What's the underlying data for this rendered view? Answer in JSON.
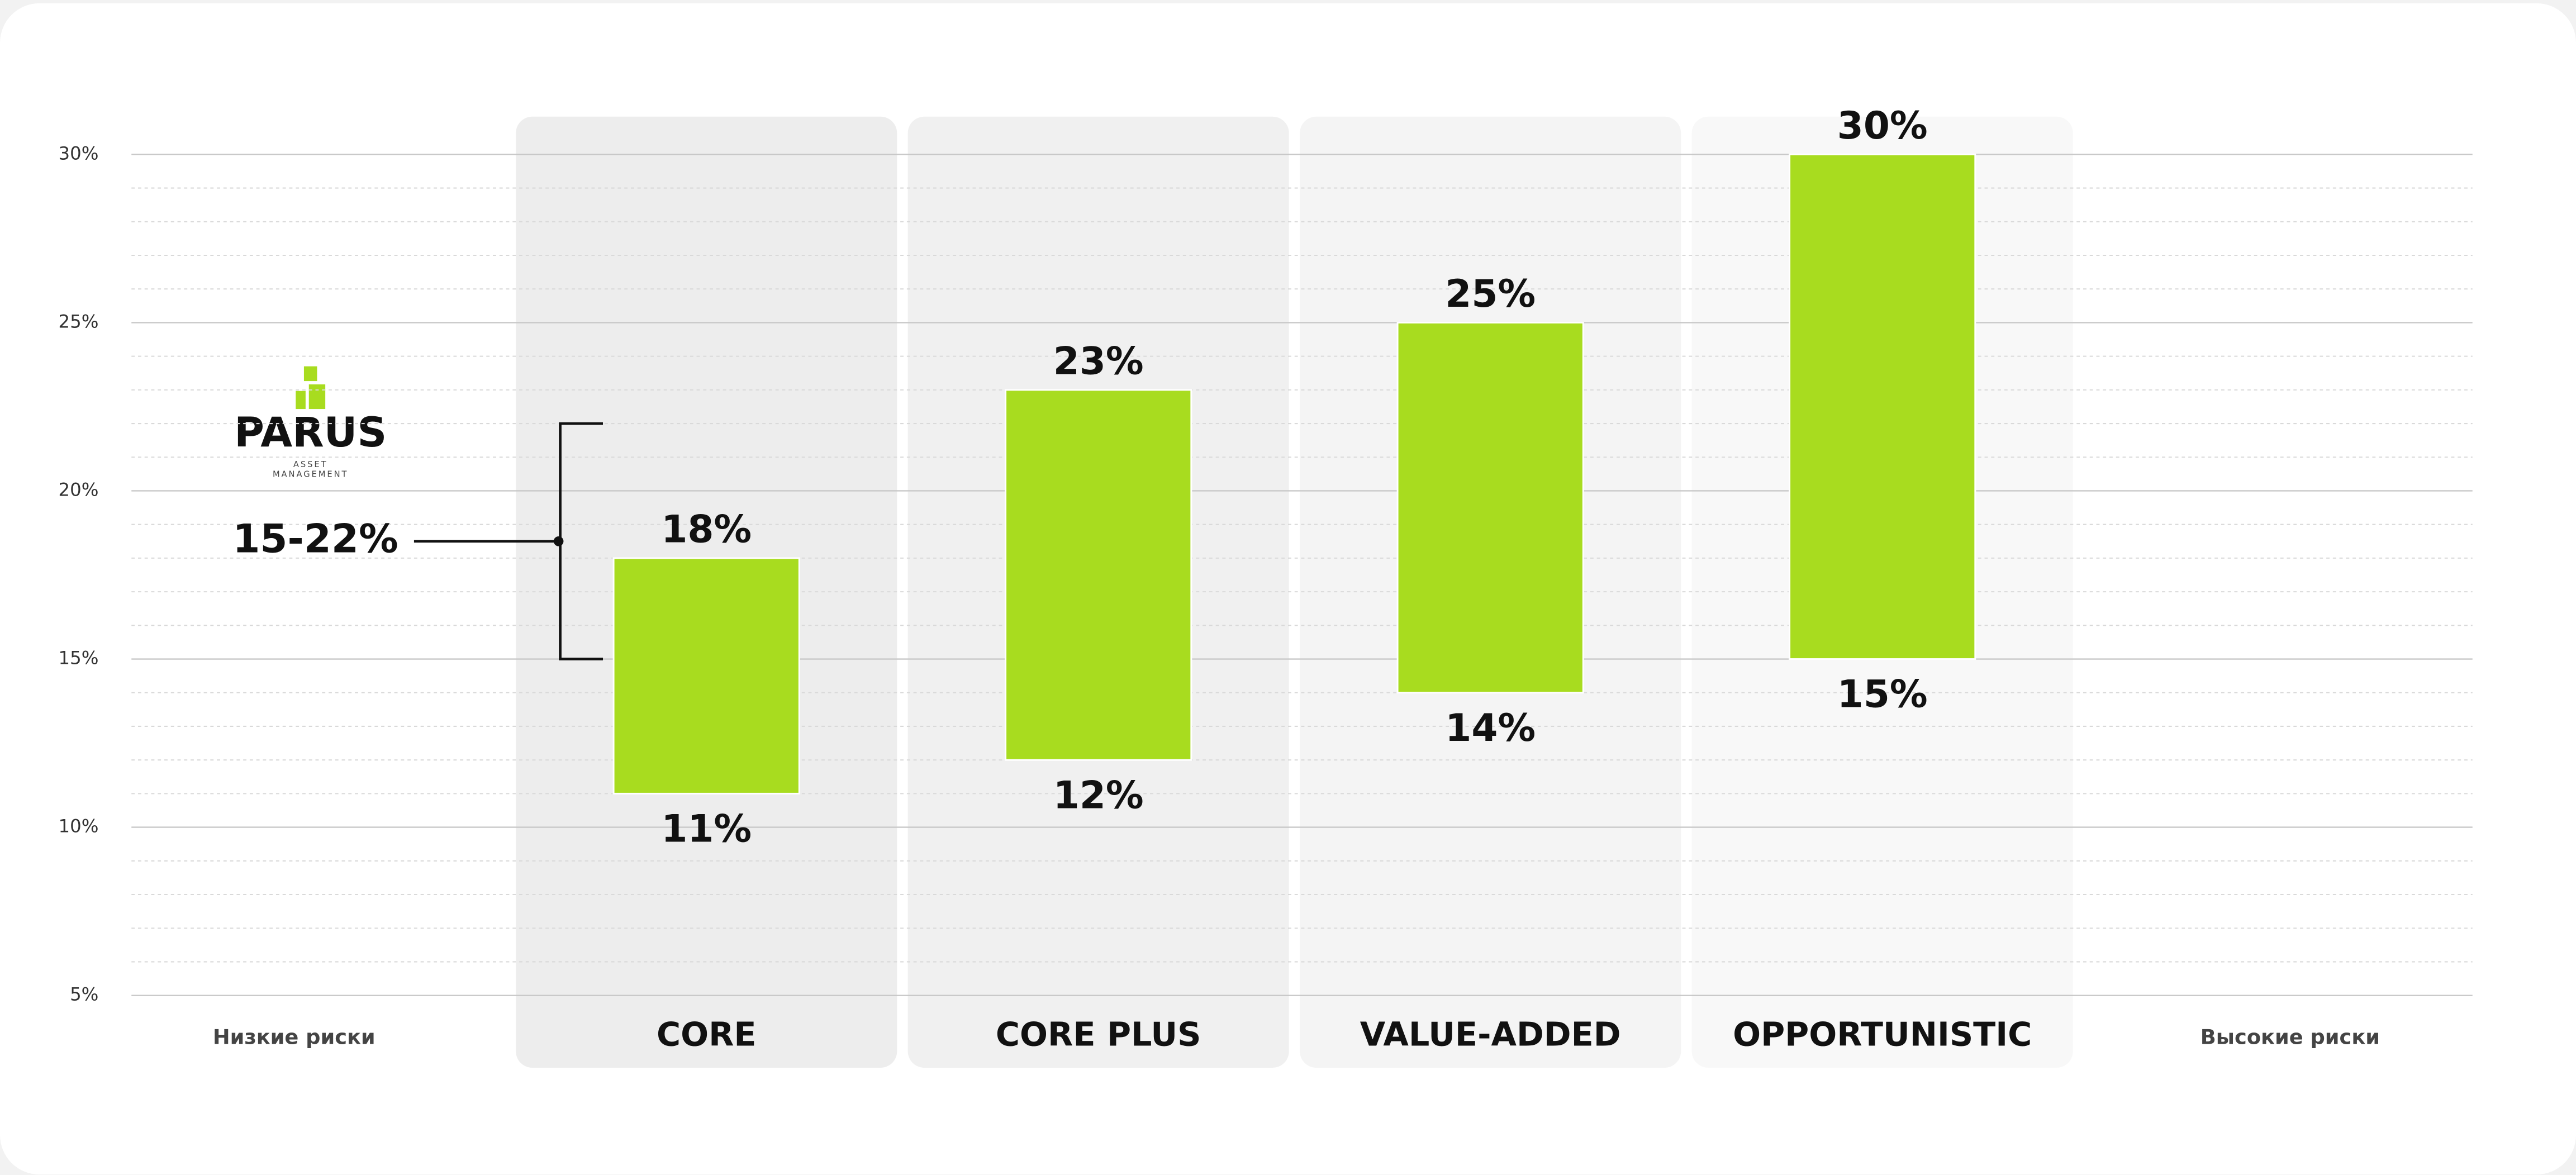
{
  "chart_data": {
    "type": "range_bar",
    "categories": [
      "CORE",
      "CORE PLUS",
      "VALUE-ADDED",
      "OPPORTUNISTIC"
    ],
    "low": {
      "values": [
        11,
        12,
        14,
        15
      ],
      "value_labels": [
        "11%",
        "12%",
        "14%",
        "15%"
      ]
    },
    "high": {
      "values": [
        18,
        23,
        25,
        30
      ],
      "value_labels": [
        "18%",
        "23%",
        "25%",
        "30%"
      ]
    },
    "color": "#a8dc1f",
    "panel_colors": [
      "#ededed",
      "#f0f0f0",
      "#f4f4f4",
      "#f8f8f8"
    ],
    "ylim": [
      5,
      30
    ],
    "yticks": [
      {
        "value": 5,
        "label": "5%"
      },
      {
        "value": 10,
        "label": "10%"
      },
      {
        "value": 15,
        "label": "15%"
      },
      {
        "value": 20,
        "label": "20%"
      },
      {
        "value": 25,
        "label": "25%"
      },
      {
        "value": 30,
        "label": "30%"
      }
    ],
    "minor_yticks": [
      6,
      7,
      8,
      9,
      11,
      12,
      13,
      14,
      16,
      17,
      18,
      19,
      21,
      22,
      23,
      24,
      26,
      27,
      28,
      29
    ],
    "grid": true,
    "left_label": "Низкие риски",
    "right_label": "Высокие риски",
    "annotation": {
      "text": "15-22%",
      "range": [
        15,
        22
      ]
    },
    "logo": {
      "name": "PARUS",
      "tagline": [
        "ASSET",
        "MANAGEMENT"
      ]
    }
  }
}
